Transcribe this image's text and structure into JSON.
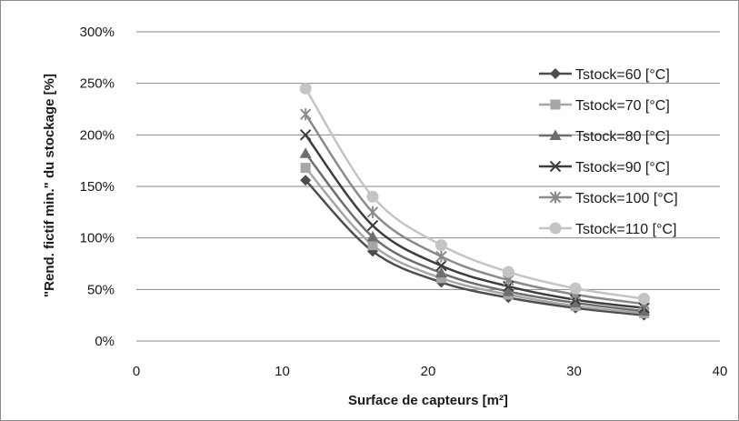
{
  "chart_data": {
    "type": "line",
    "xlabel": "Surface de capteurs [m²]",
    "ylabel": "\"Rend. fictif min.\" du stockage [%]",
    "xlim": [
      0,
      40
    ],
    "ylim": [
      0,
      300
    ],
    "x_ticks": [
      "0",
      "10",
      "20",
      "30",
      "40"
    ],
    "y_ticks": [
      "0%",
      "50%",
      "100%",
      "150%",
      "200%",
      "250%",
      "300%"
    ],
    "grid": "horizontal",
    "legend_position": "right",
    "x": [
      11.6,
      16.2,
      20.9,
      25.5,
      30.1,
      34.8
    ],
    "series": [
      {
        "name": "Tstock=60 [°C]",
        "marker": "diamond",
        "color": "#4d4d4d",
        "values": [
          156,
          87,
          57,
          42,
          32,
          25
        ]
      },
      {
        "name": "Tstock=70 [°C]",
        "marker": "square",
        "color": "#a6a6a6",
        "values": [
          168,
          93,
          61,
          45,
          34,
          27
        ]
      },
      {
        "name": "Tstock=80 [°C]",
        "marker": "triangle",
        "color": "#6e6e6e",
        "values": [
          182,
          101,
          66,
          48,
          37,
          29
        ]
      },
      {
        "name": "Tstock=90 [°C]",
        "marker": "x",
        "color": "#3d3d3d",
        "values": [
          200,
          112,
          73,
          53,
          40,
          32
        ]
      },
      {
        "name": "Tstock=100 [°C]",
        "marker": "star",
        "color": "#8a8a8a",
        "values": [
          220,
          125,
          82,
          59,
          45,
          36
        ]
      },
      {
        "name": "Tstock=110 [°C]",
        "marker": "circle",
        "color": "#c4c4c4",
        "values": [
          245,
          140,
          93,
          67,
          51,
          41
        ]
      }
    ]
  }
}
